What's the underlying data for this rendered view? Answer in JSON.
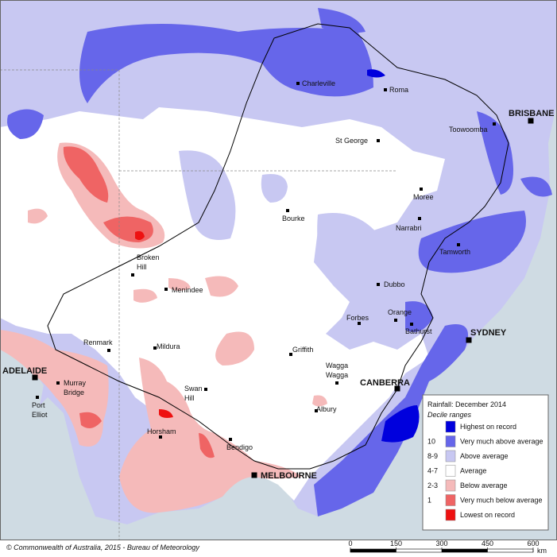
{
  "legend": {
    "title": "Rainfall: December 2014",
    "subtitle": "Decile ranges",
    "entries": [
      {
        "label": "Highest on record",
        "color": "#0000dd"
      },
      {
        "code": "10",
        "label": "Very much above average",
        "color": "#6666ea"
      },
      {
        "code": "8-9",
        "label": "Above average",
        "color": "#c8c8f2"
      },
      {
        "code": "4-7",
        "label": "Average",
        "color": "#ffffff"
      },
      {
        "code": "2-3",
        "label": "Below average",
        "color": "#f5baba"
      },
      {
        "code": "1",
        "label": "Very much below average",
        "color": "#ef6464"
      },
      {
        "label": "Lowest on record",
        "color": "#ee1111"
      }
    ]
  },
  "towns": [
    {
      "lines": [
        "Charleville"
      ]
    },
    {
      "lines": [
        "Roma"
      ]
    },
    {
      "lines": [
        "BRISBANE"
      ],
      "capital": true
    },
    {
      "lines": [
        "Toowoomba"
      ]
    },
    {
      "lines": [
        "St George"
      ]
    },
    {
      "lines": [
        "Moree"
      ]
    },
    {
      "lines": [
        "Bourke"
      ]
    },
    {
      "lines": [
        "Narrabri"
      ]
    },
    {
      "lines": [
        "Tamworth"
      ]
    },
    {
      "lines": [
        "Broken",
        "Hill"
      ]
    },
    {
      "lines": [
        "Menindee"
      ]
    },
    {
      "lines": [
        "Dubbo"
      ]
    },
    {
      "lines": [
        "Orange"
      ]
    },
    {
      "lines": [
        "Bathurst"
      ]
    },
    {
      "lines": [
        "Forbes"
      ]
    },
    {
      "lines": [
        "SYDNEY"
      ],
      "capital": true
    },
    {
      "lines": [
        "Renmark"
      ]
    },
    {
      "lines": [
        "Mildura"
      ]
    },
    {
      "lines": [
        "Griffith"
      ]
    },
    {
      "lines": [
        "Wagga",
        "Wagga"
      ]
    },
    {
      "lines": [
        "ADELAIDE"
      ],
      "capital": true
    },
    {
      "lines": [
        "Murray",
        "Bridge"
      ]
    },
    {
      "lines": [
        "CANBERRA"
      ],
      "capital": true
    },
    {
      "lines": [
        "Port",
        "Elliot"
      ]
    },
    {
      "lines": [
        "Swan",
        "Hill"
      ]
    },
    {
      "lines": [
        "Albury"
      ]
    },
    {
      "lines": [
        "Horsham"
      ]
    },
    {
      "lines": [
        "Bendigo"
      ]
    },
    {
      "lines": [
        "MELBOURNE"
      ],
      "capital": true
    }
  ],
  "scale": {
    "ticks": [
      0,
      150,
      300,
      450,
      600
    ],
    "unit": "km"
  },
  "copyright": "© Commonwealth of Australia, 2015 - Bureau of Meteorology"
}
